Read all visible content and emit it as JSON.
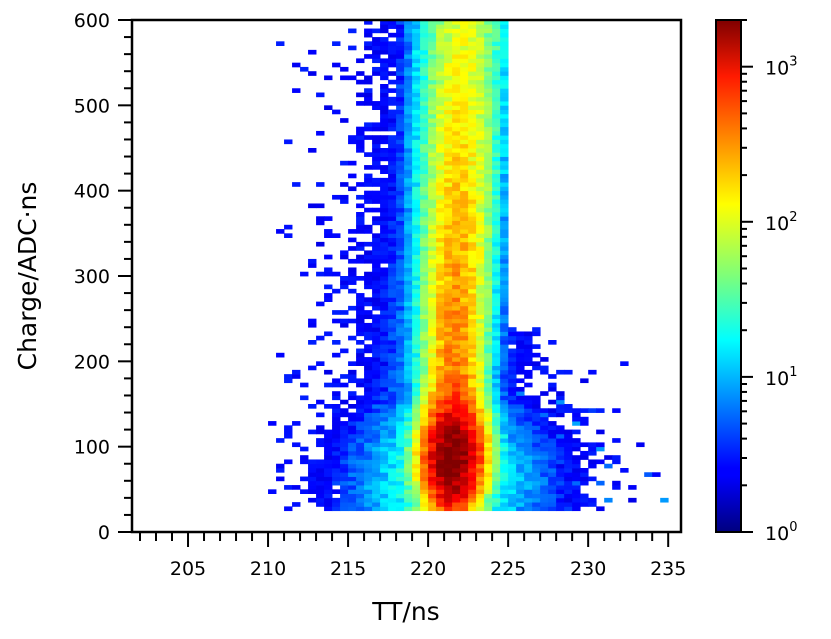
{
  "chart_data": {
    "type": "heatmap",
    "title": "",
    "xlabel": "TT/ns",
    "ylabel": "Charge/ADC·ns",
    "xlim": [
      201.5,
      235.8
    ],
    "ylim": [
      0,
      600
    ],
    "x_ticks": [
      "205",
      "210",
      "215",
      "220",
      "225",
      "230",
      "235"
    ],
    "y_ticks": [
      "0",
      "100",
      "200",
      "300",
      "400",
      "500",
      "600"
    ],
    "x_bin_width": 0.5,
    "y_bin_width": 5,
    "colorbar": {
      "scale": "log",
      "range": [
        1,
        2000
      ],
      "tick_labels": [
        {
          "base": "10",
          "exp": "0",
          "value": 1
        },
        {
          "base": "10",
          "exp": "1",
          "value": 10
        },
        {
          "base": "10",
          "exp": "2",
          "value": 100
        },
        {
          "base": "10",
          "exp": "3",
          "value": 1000
        }
      ],
      "colormap": "jet"
    },
    "peak": {
      "tt": 221.2,
      "charge": 92,
      "counts": 2000
    },
    "grid": false,
    "legend": "none"
  }
}
